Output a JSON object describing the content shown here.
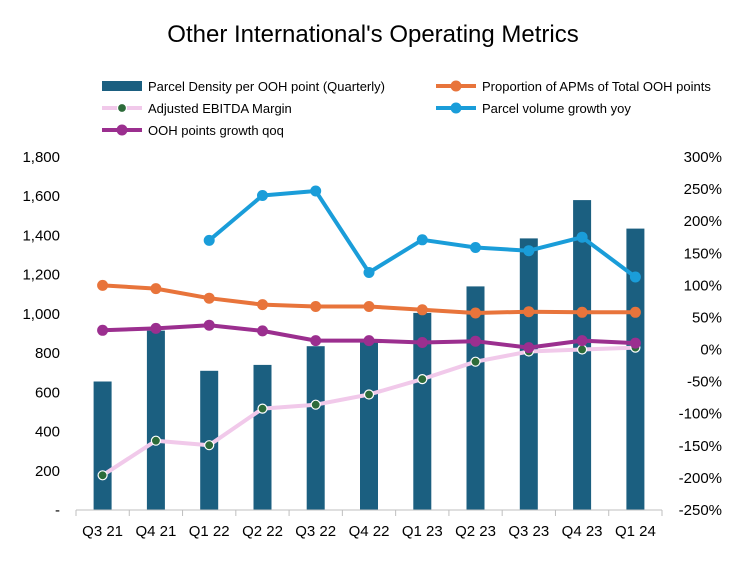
{
  "chart_data": {
    "type": "bar+line",
    "title": "Other International's Operating Metrics",
    "categories": [
      "Q3 21",
      "Q4 21",
      "Q1 22",
      "Q2 22",
      "Q3 22",
      "Q4 22",
      "Q1 23",
      "Q2 23",
      "Q3 23",
      "Q4 23",
      "Q1 24"
    ],
    "left_axis": {
      "ylim": [
        0,
        1800
      ],
      "ticks": [
        0,
        200,
        400,
        600,
        800,
        1000,
        1200,
        1400,
        1600,
        1800
      ],
      "tick_labels": [
        "-",
        "200",
        "400",
        "600",
        "800",
        "1,000",
        "1,200",
        "1,400",
        "1,600",
        "1,800"
      ]
    },
    "right_axis": {
      "ylim": [
        -250,
        300
      ],
      "ticks": [
        -250,
        -200,
        -150,
        -100,
        -50,
        0,
        50,
        100,
        150,
        200,
        250,
        300
      ],
      "tick_labels": [
        "-250%",
        "-200%",
        "-150%",
        "-100%",
        "-50%",
        "0%",
        "50%",
        "100%",
        "150%",
        "200%",
        "250%",
        "300%"
      ]
    },
    "series": [
      {
        "name": "Parcel Density per OOH point (Quarterly)",
        "type": "bar",
        "axis": "left",
        "color": "#1b5f80",
        "values": [
          655,
          915,
          710,
          740,
          835,
          870,
          1005,
          1140,
          1385,
          1580,
          1435
        ]
      },
      {
        "name": "Proportion of APMs of Total OOH points",
        "type": "line",
        "axis": "right",
        "color": "#e8743b",
        "values": [
          100,
          95,
          80,
          70,
          67,
          67,
          62,
          57,
          59,
          58,
          58
        ]
      },
      {
        "name": "Adjusted EBITDA Margin",
        "type": "line",
        "axis": "right",
        "color": "#f1c9ea",
        "marker_color": "#2d6b3a",
        "values": [
          -196,
          -142,
          -149,
          -92,
          -86,
          -70,
          -46,
          -19,
          -3,
          0,
          3
        ]
      },
      {
        "name": "Parcel volume growth yoy",
        "type": "line",
        "axis": "right",
        "color": "#1a9dd9",
        "values": [
          null,
          null,
          170,
          240,
          247,
          120,
          171,
          159,
          154,
          175,
          113
        ]
      },
      {
        "name": "OOH points growth qoq",
        "type": "line",
        "axis": "right",
        "color": "#9b2f8f",
        "values": [
          30,
          33,
          38,
          29,
          14,
          14,
          11,
          13,
          3,
          14,
          10
        ]
      }
    ],
    "legend_placement": "top",
    "grid": false
  }
}
